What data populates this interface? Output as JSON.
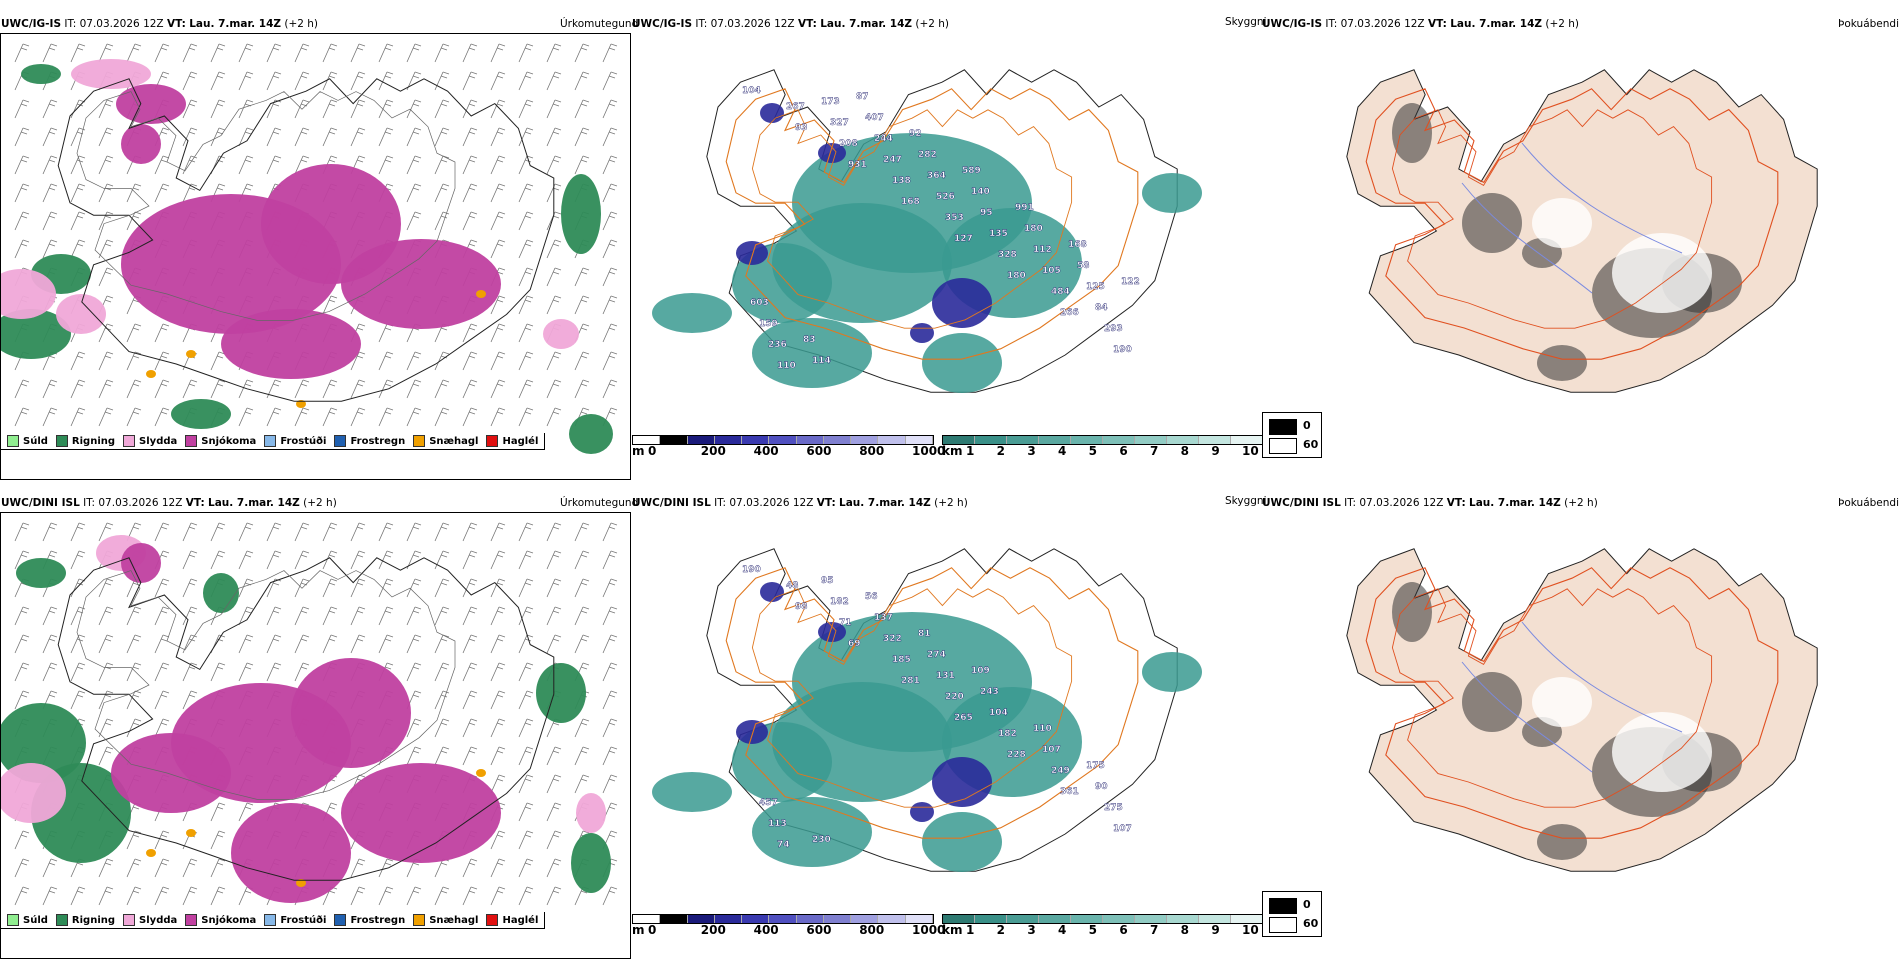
{
  "rows": [
    {
      "id": "top",
      "header_precip": {
        "model": "UWC/IG-IS",
        "it_label": "IT:",
        "it": "07.03.2026 12Z",
        "vt_label": "VT:",
        "vt": "Lau. 7.mar. 14Z",
        "offset": "(+2 h)"
      },
      "header_cloud": {
        "model": "UWC/IG-IS",
        "it_label": "IT:",
        "it": "07.03.2026 12Z",
        "vt_label": "VT:",
        "vt": "Lau. 7.mar. 14Z",
        "offset": "(+2 h)"
      },
      "header_fog": {
        "model": "UWC/IG-IS",
        "it_label": "IT:",
        "it": "07.03.2026 12Z",
        "vt_label": "VT:",
        "vt": "Lau. 7.mar. 14Z",
        "offset": "(+2 h)"
      },
      "cloud_labels": [
        "104",
        "93",
        "931",
        "168",
        "127",
        "180",
        "266",
        "190",
        "267",
        "208",
        "138",
        "353",
        "328",
        "484",
        "293",
        "110",
        "327",
        "247",
        "526",
        "135",
        "105",
        "84",
        "236",
        "173",
        "244",
        "364",
        "95",
        "112",
        "125",
        "159",
        "114",
        "407",
        "282",
        "140",
        "180",
        "58",
        "603",
        "83",
        "87",
        "92",
        "589",
        "991",
        "168",
        "122"
      ]
    },
    {
      "id": "bottom",
      "header_precip": {
        "model": "UWC/DINI ISL",
        "it_label": "IT:",
        "it": "07.03.2026 12Z",
        "vt_label": "VT:",
        "vt": "Lau. 7.mar. 14Z",
        "offset": "(+2 h)"
      },
      "header_cloud": {
        "model": "UWC/DINI ISL",
        "it_label": "IT:",
        "it": "07.03.2026 12Z",
        "vt_label": "VT:",
        "vt": "Lau. 7.mar. 14Z",
        "offset": "(+2 h)"
      },
      "header_fog": {
        "model": "UWC/DINI ISL",
        "it_label": "IT:",
        "it": "07.03.2026 12Z",
        "vt_label": "VT:",
        "vt": "Lau. 7.mar. 14Z",
        "offset": "(+2 h)"
      },
      "cloud_labels": [
        "190",
        "98",
        "69",
        "281",
        "265",
        "228",
        "361",
        "107",
        "48",
        "71",
        "185",
        "220",
        "182",
        "249",
        "275",
        "74",
        "182",
        "322",
        "131",
        "104",
        "107",
        "90",
        "113",
        "95",
        "137",
        "274",
        "243",
        "110",
        "175",
        "457",
        "230",
        "56",
        "81",
        "109"
      ]
    }
  ],
  "titles": {
    "precip": "Úrkomutegund",
    "cloud": "Skyggni",
    "fog": "Þokuábendi"
  },
  "precip_legend": [
    {
      "label": "Súld",
      "color": "#90ee90"
    },
    {
      "label": "Rigning",
      "color": "#2e8b57"
    },
    {
      "label": "Slydda",
      "color": "#f0a8d8"
    },
    {
      "label": "Snjókoma",
      "color": "#c040a0"
    },
    {
      "label": "Frostúði",
      "color": "#87b8e8"
    },
    {
      "label": "Frostregn",
      "color": "#2060b0"
    },
    {
      "label": "Snæhagl",
      "color": "#f0a000"
    },
    {
      "label": "Haglél",
      "color": "#e01010"
    }
  ],
  "colorbar_m": {
    "unit": "m",
    "ticks": [
      "0",
      "200",
      "400",
      "600",
      "800",
      "1000"
    ]
  },
  "colorbar_km": {
    "unit": "km",
    "ticks": [
      "1",
      "2",
      "3",
      "4",
      "5",
      "6",
      "7",
      "8",
      "9",
      "10"
    ]
  },
  "fog_legend": {
    "black": "0",
    "white": "60"
  }
}
